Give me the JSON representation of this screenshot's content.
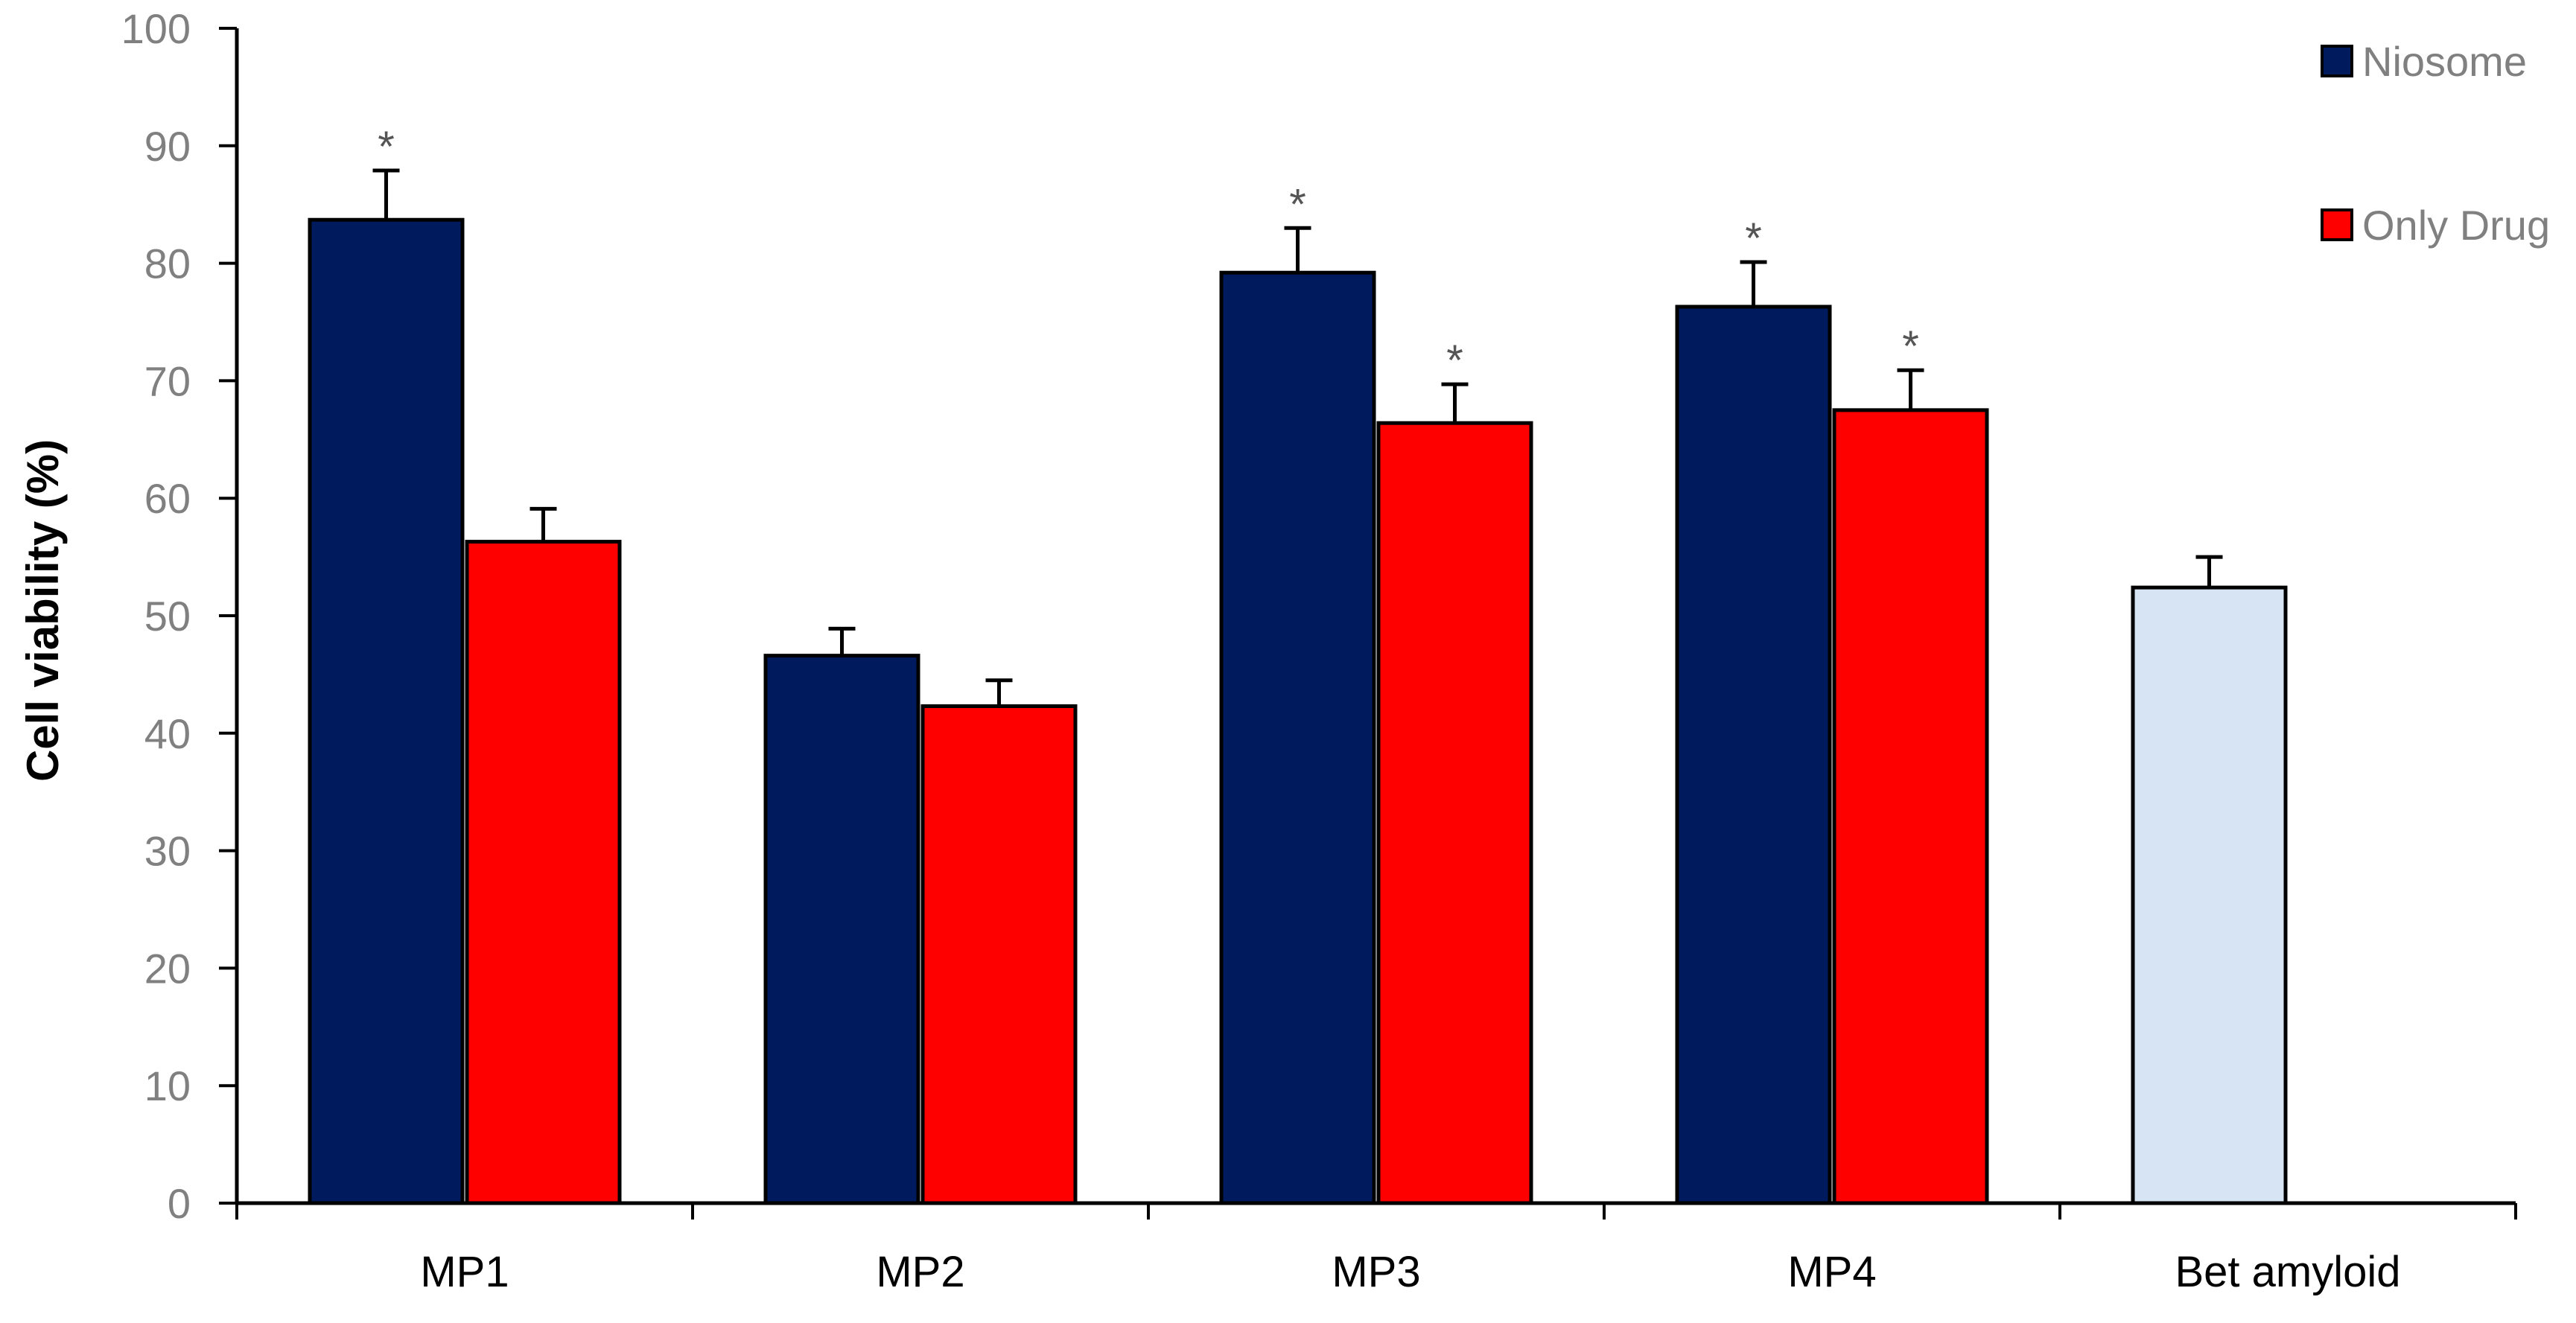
{
  "chart_data": {
    "type": "bar",
    "title": "",
    "xlabel": "",
    "ylabel": "Cell viability (%)",
    "ylim": [
      0,
      100
    ],
    "yticks": [
      0,
      10,
      20,
      30,
      40,
      50,
      60,
      70,
      80,
      90,
      100
    ],
    "categories": [
      "MP1",
      "MP2",
      "MP3",
      "MP4",
      "Bet amyloid"
    ],
    "series": [
      {
        "name": "Niosome",
        "color": "#001a5e",
        "values": [
          83.7,
          46.6,
          79.2,
          76.3,
          null
        ],
        "errors": [
          4.2,
          2.3,
          3.8,
          3.8,
          null
        ],
        "significant": [
          true,
          false,
          true,
          true,
          false
        ]
      },
      {
        "name": "Only Drug",
        "color": "#ff0000",
        "values": [
          56.3,
          42.3,
          66.4,
          67.5,
          null
        ],
        "errors": [
          2.8,
          2.2,
          3.3,
          3.4,
          null
        ],
        "significant": [
          false,
          false,
          true,
          true,
          false
        ]
      }
    ],
    "control": {
      "category": "Bet amyloid",
      "color": "#d6e4f4",
      "value": 52.4,
      "error": 2.6
    },
    "significance_marker": "*",
    "legend_position": "top-right",
    "grid": false
  }
}
